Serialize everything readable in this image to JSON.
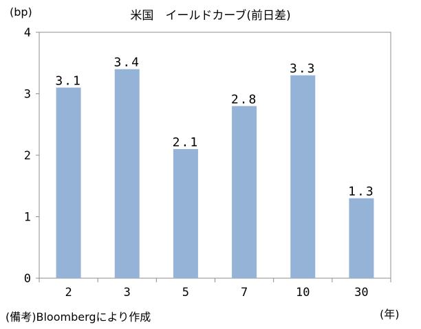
{
  "chart_data": {
    "type": "bar",
    "title": "米国　イールドカーブ(前日差)",
    "ylabel": "(bp)",
    "xlabel": "(年)",
    "categories": [
      "2",
      "3",
      "5",
      "7",
      "10",
      "30"
    ],
    "values": [
      3.1,
      3.4,
      2.1,
      2.8,
      3.3,
      1.3
    ],
    "data_labels": [
      "3.1",
      "3.4",
      "2.1",
      "2.8",
      "3.3",
      "1.3"
    ],
    "ylim": [
      0,
      4
    ],
    "yticks": [
      "0",
      "1",
      "2",
      "3",
      "4"
    ],
    "grid": false,
    "legend": "none",
    "bar_color": "#94b3d7",
    "axis_color": "#8c8c8c"
  },
  "source_note": "(備考)Bloombergにより作成"
}
